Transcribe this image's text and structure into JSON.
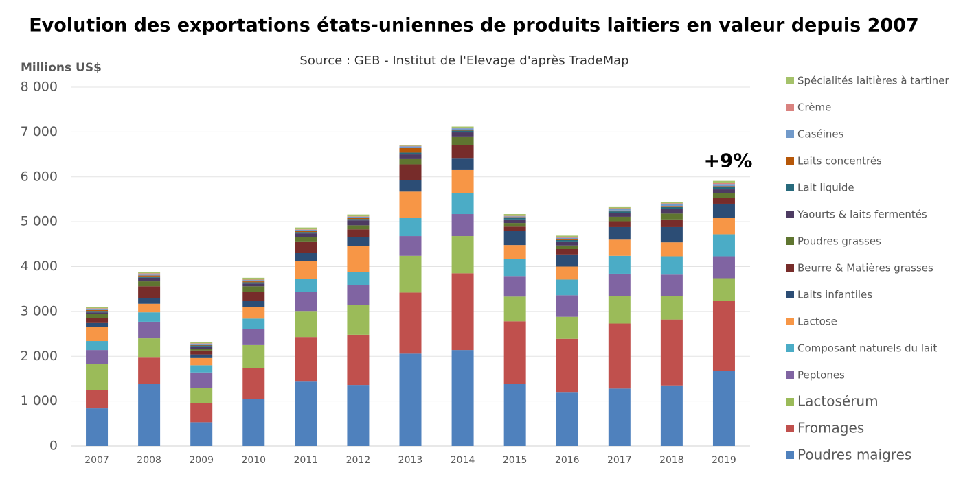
{
  "chart_data": {
    "type": "stacked_bar",
    "title": "Evolution des exportations états-uniennes de produits laitiers en valeur depuis 2007",
    "subtitle": "Source : GEB - Institut de l'Elevage d'après TradeMap",
    "y_label": "Millions US$",
    "annotation": "+9%",
    "categories": [
      "2007",
      "2008",
      "2009",
      "2010",
      "2011",
      "2012",
      "2013",
      "2014",
      "2015",
      "2016",
      "2017",
      "2018",
      "2019"
    ],
    "ylim": [
      0,
      8000
    ],
    "yticks": [
      0,
      {
        "value": 1000,
        "label": "1 000"
      },
      {
        "value": 2000,
        "label": "2 000"
      },
      {
        "value": 3000,
        "label": "3 000"
      },
      {
        "value": 4000,
        "label": "4 000"
      },
      {
        "value": 5000,
        "label": "5 000"
      },
      {
        "value": 6000,
        "label": "6 000"
      },
      {
        "value": 7000,
        "label": "7 000"
      },
      {
        "value": 8000,
        "label": "8 000"
      }
    ],
    "grid": true,
    "legend": "right",
    "series": [
      {
        "name": "Poudres maigres",
        "color": "#4f81bd",
        "values": [
          840,
          1390,
          530,
          1040,
          1450,
          1360,
          2060,
          2140,
          1390,
          1190,
          1280,
          1350,
          1670
        ]
      },
      {
        "name": "Fromages",
        "color": "#c0504d",
        "values": [
          400,
          580,
          430,
          700,
          980,
          1120,
          1360,
          1710,
          1390,
          1200,
          1450,
          1470,
          1560
        ]
      },
      {
        "name": "Lactosérum",
        "color": "#9bbb59",
        "values": [
          580,
          430,
          340,
          510,
          580,
          670,
          820,
          830,
          550,
          490,
          620,
          520,
          510
        ]
      },
      {
        "name": "Peptones",
        "color": "#8064a2",
        "values": [
          320,
          370,
          340,
          360,
          430,
          430,
          440,
          490,
          460,
          480,
          490,
          480,
          490
        ]
      },
      {
        "name": "Composant naturels du lait",
        "color": "#4bacc6",
        "values": [
          200,
          210,
          160,
          230,
          290,
          300,
          410,
          470,
          380,
          350,
          400,
          410,
          490
        ]
      },
      {
        "name": "Lactose",
        "color": "#f79646",
        "values": [
          310,
          190,
          160,
          250,
          400,
          580,
          580,
          510,
          310,
          290,
          360,
          310,
          360
        ]
      },
      {
        "name": "Laits infantiles",
        "color": "#2c4d75",
        "values": [
          90,
          130,
          80,
          150,
          170,
          190,
          250,
          270,
          310,
          270,
          280,
          340,
          320
        ]
      },
      {
        "name": "Beurre & Matières grasses",
        "color": "#772c2a",
        "values": [
          120,
          260,
          90,
          200,
          260,
          180,
          360,
          290,
          100,
          120,
          130,
          170,
          130
        ]
      },
      {
        "name": "Poudres grasses",
        "color": "#5f7530",
        "values": [
          80,
          110,
          40,
          120,
          100,
          90,
          130,
          190,
          80,
          80,
          100,
          130,
          110
        ]
      },
      {
        "name": "Yaourts & laits fermentés",
        "color": "#4d3b62",
        "values": [
          40,
          80,
          50,
          60,
          80,
          110,
          90,
          90,
          80,
          90,
          90,
          110,
          80
        ]
      },
      {
        "name": "Lait liquide",
        "color": "#276a7c",
        "values": [
          30,
          30,
          20,
          30,
          30,
          30,
          40,
          40,
          30,
          30,
          30,
          40,
          50
        ]
      },
      {
        "name": "Laits concentrés",
        "color": "#b65708",
        "values": [
          20,
          20,
          10,
          20,
          20,
          20,
          100,
          20,
          20,
          20,
          20,
          20,
          20
        ]
      },
      {
        "name": "Caséines",
        "color": "#729aca",
        "values": [
          30,
          20,
          30,
          30,
          30,
          30,
          40,
          30,
          20,
          30,
          40,
          40,
          50
        ]
      },
      {
        "name": "Crème",
        "color": "#d9827f",
        "values": [
          10,
          30,
          10,
          10,
          10,
          10,
          10,
          10,
          10,
          10,
          10,
          20,
          20
        ]
      },
      {
        "name": "Spécialités laitières à tartiner",
        "color": "#a5c26a",
        "values": [
          20,
          30,
          30,
          40,
          40,
          40,
          20,
          30,
          40,
          40,
          40,
          30,
          50
        ]
      }
    ]
  }
}
